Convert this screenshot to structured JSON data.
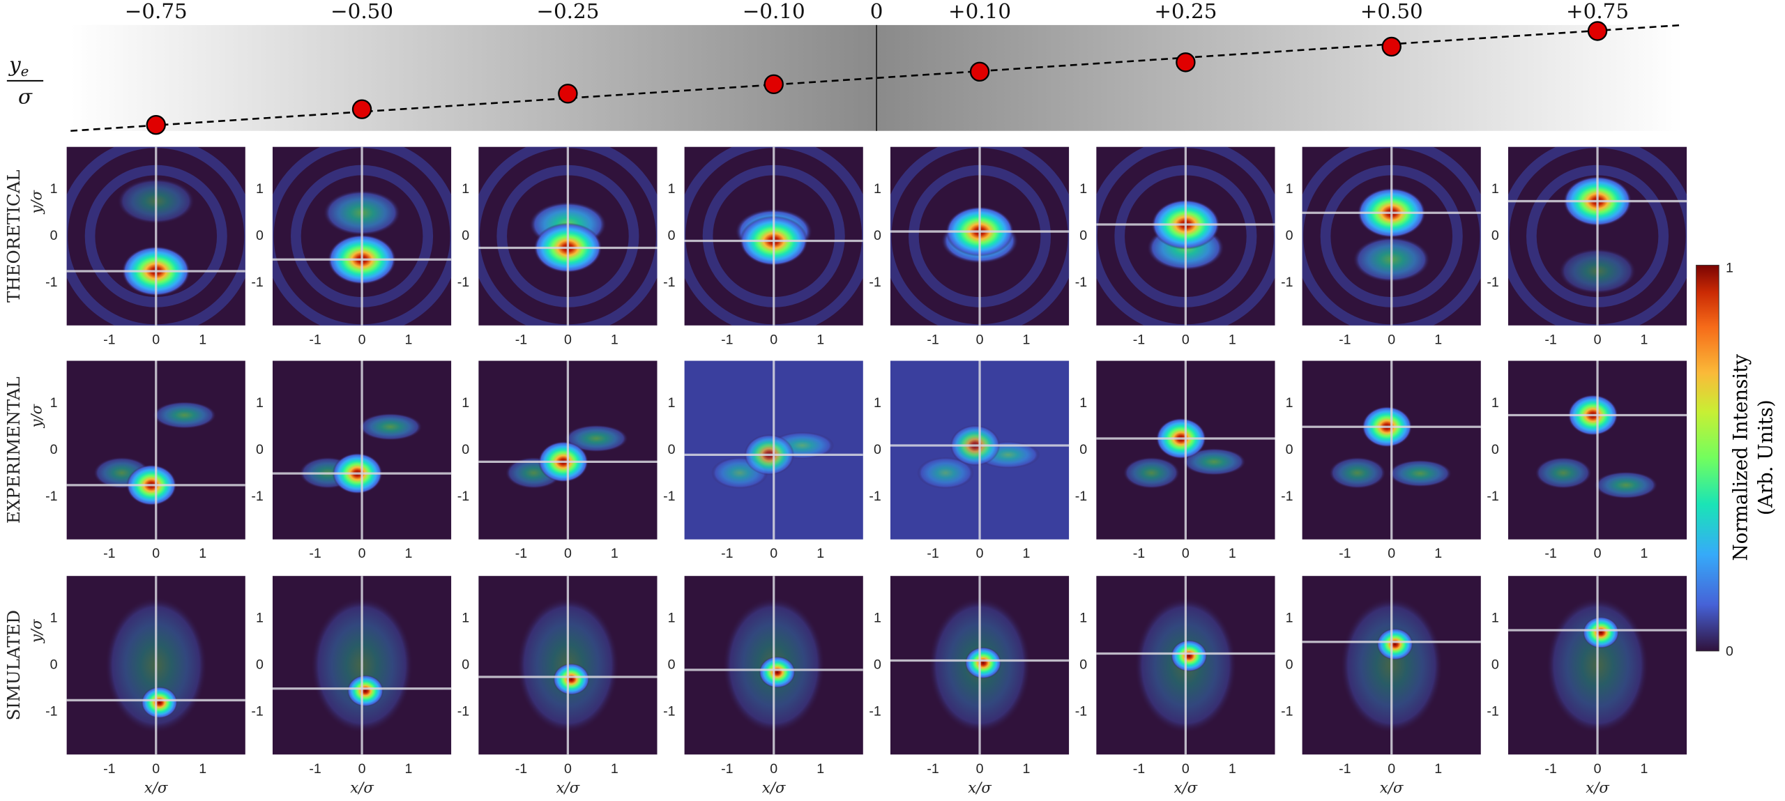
{
  "top_axis": {
    "numerator": "y",
    "subscript": "e",
    "denominator": "σ",
    "zero": {
      "value": 0,
      "label": "0"
    },
    "columns": [
      {
        "value": -0.75,
        "label": "−0.75"
      },
      {
        "value": -0.5,
        "label": "−0.50"
      },
      {
        "value": -0.25,
        "label": "−0.25"
      },
      {
        "value": -0.1,
        "label": "−0.10"
      },
      {
        "value": 0.1,
        "label": "+0.10"
      },
      {
        "value": 0.25,
        "label": "+0.25"
      },
      {
        "value": 0.5,
        "label": "+0.50"
      },
      {
        "value": 0.75,
        "label": "+0.75"
      }
    ]
  },
  "rows": [
    {
      "label": "THEORETICAL"
    },
    {
      "label": "EXPERIMENTAL"
    },
    {
      "label": "SIMULATED"
    }
  ],
  "axes": {
    "ticks": [
      -1,
      0,
      1
    ],
    "x_label": "x/σ",
    "y_label": "y/σ"
  },
  "colorbar": {
    "line1": "Normalized Intensity",
    "line2": "(Arb. Units)",
    "min": 0,
    "max": 1
  }
}
